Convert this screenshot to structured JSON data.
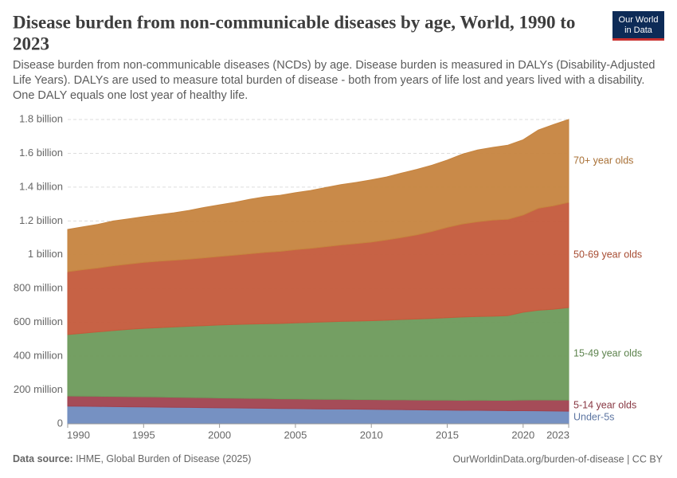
{
  "chart_data": {
    "type": "stacked-area",
    "title_lines": [
      "Disease burden from non-communicable diseases by age, World, 1990 to",
      "2023"
    ],
    "subtitle_lines": [
      "Disease burden from non-communicable diseases (NCDs) by age. Disease burden is measured in DALYs (Disability-Adjusted",
      "Life Years). DALYs are used to measure total burden of disease - both from years of life lost and years lived with a disability.",
      "One DALY equals one lost year of healthy life."
    ],
    "logo_lines": [
      "Our World",
      "in Data"
    ],
    "source_label": "Data source:",
    "source": "IHME, Global Burden of Disease (2025)",
    "footer_right": "OurWorldinData.org/burden-of-disease | CC BY",
    "x": [
      1990,
      1991,
      1992,
      1993,
      1994,
      1995,
      1996,
      1997,
      1998,
      1999,
      2000,
      2001,
      2002,
      2003,
      2004,
      2005,
      2006,
      2007,
      2008,
      2009,
      2010,
      2011,
      2012,
      2013,
      2014,
      2015,
      2016,
      2017,
      2018,
      2019,
      2020,
      2021,
      2022,
      2023
    ],
    "xlim": [
      1990,
      2023
    ],
    "xticks": [
      1990,
      1995,
      2000,
      2005,
      2010,
      2015,
      2020,
      2023
    ],
    "ylim": [
      0,
      1800000000
    ],
    "yticks": [
      0,
      {
        "value": 200000000,
        "label": "200 million"
      },
      {
        "value": 400000000,
        "label": "400 million"
      },
      {
        "value": 600000000,
        "label": "600 million"
      },
      {
        "value": 800000000,
        "label": "800 million"
      },
      {
        "value": 1000000000,
        "label": "1 billion"
      },
      {
        "value": 1200000000,
        "label": "1.2 billion"
      },
      {
        "value": 1400000000,
        "label": "1.4 billion"
      },
      {
        "value": 1600000000,
        "label": "1.6 billion"
      },
      {
        "value": 1800000000,
        "label": "1.8 billion"
      }
    ],
    "grid": true,
    "series": [
      {
        "name": "Under-5s",
        "color": "#6f8bbf",
        "values": [
          105000000.0,
          104000000.0,
          103000000.0,
          102000000.0,
          101000000.0,
          100000000.0,
          99000000.0,
          98000000.0,
          97000000.0,
          96000000.0,
          95000000.0,
          94000000.0,
          93000000.0,
          92000000.0,
          91000000.0,
          90000000.0,
          89000000.0,
          88000000.0,
          88000000.0,
          87000000.0,
          86000000.0,
          85000000.0,
          84000000.0,
          83000000.0,
          82000000.0,
          81000000.0,
          80000000.0,
          80000000.0,
          79000000.0,
          78000000.0,
          78000000.0,
          77000000.0,
          76000000.0,
          75000000.0
        ]
      },
      {
        "name": "5-14 year olds",
        "color": "#a0424f",
        "values": [
          60000000.0,
          60000000.0,
          60000000.0,
          60000000.0,
          60000000.0,
          60000000.0,
          60000000.0,
          59000000.0,
          59000000.0,
          59000000.0,
          58000000.0,
          58000000.0,
          58000000.0,
          58000000.0,
          57000000.0,
          57000000.0,
          57000000.0,
          57000000.0,
          57000000.0,
          57000000.0,
          57000000.0,
          57000000.0,
          58000000.0,
          58000000.0,
          58000000.0,
          59000000.0,
          59000000.0,
          60000000.0,
          60000000.0,
          61000000.0,
          63000000.0,
          65000000.0,
          65000000.0,
          66000000.0
        ]
      },
      {
        "name": "15-49 year olds",
        "color": "#6d9a5b",
        "values": [
          363000000.0,
          372000000.0,
          381000000.0,
          390000000.0,
          398000000.0,
          405000000.0,
          410000000.0,
          416000000.0,
          421000000.0,
          426000000.0,
          432000000.0,
          436000000.0,
          439000000.0,
          442000000.0,
          446000000.0,
          450000000.0,
          454000000.0,
          458000000.0,
          461000000.0,
          464000000.0,
          467000000.0,
          471000000.0,
          475000000.0,
          479000000.0,
          484000000.0,
          488000000.0,
          493000000.0,
          495000000.0,
          498000000.0,
          501000000.0,
          519000000.0,
          530000000.0,
          537000000.0,
          547000000.0
        ]
      },
      {
        "name": "50-69 year olds",
        "color": "#c45a3b",
        "values": [
          372000000.0,
          376000000.0,
          378000000.0,
          383000000.0,
          386000000.0,
          390000000.0,
          393000000.0,
          395000000.0,
          397000000.0,
          401000000.0,
          405000000.0,
          410000000.0,
          416000000.0,
          422000000.0,
          426000000.0,
          433000000.0,
          438000000.0,
          445000000.0,
          452000000.0,
          458000000.0,
          465000000.0,
          475000000.0,
          485000000.0,
          498000000.0,
          514000000.0,
          534000000.0,
          550000000.0,
          560000000.0,
          568000000.0,
          570000000.0,
          575000000.0,
          603000000.0,
          612000000.0,
          622000000.0
        ]
      },
      {
        "name": "70+ year olds",
        "color": "#c6843f",
        "values": [
          250000000.0,
          253000000.0,
          258000000.0,
          265000000.0,
          267000000.0,
          270000000.0,
          275000000.0,
          280000000.0,
          288000000.0,
          298000000.0,
          305000000.0,
          312000000.0,
          322000000.0,
          329000000.0,
          332000000.0,
          337000000.0,
          342000000.0,
          350000000.0,
          357000000.0,
          362000000.0,
          368000000.0,
          372000000.0,
          381000000.0,
          387000000.0,
          392000000.0,
          398000000.0,
          413000000.0,
          425000000.0,
          430000000.0,
          438000000.0,
          445000000.0,
          463000000.0,
          480000000.0,
          490000000.0
        ]
      }
    ]
  }
}
